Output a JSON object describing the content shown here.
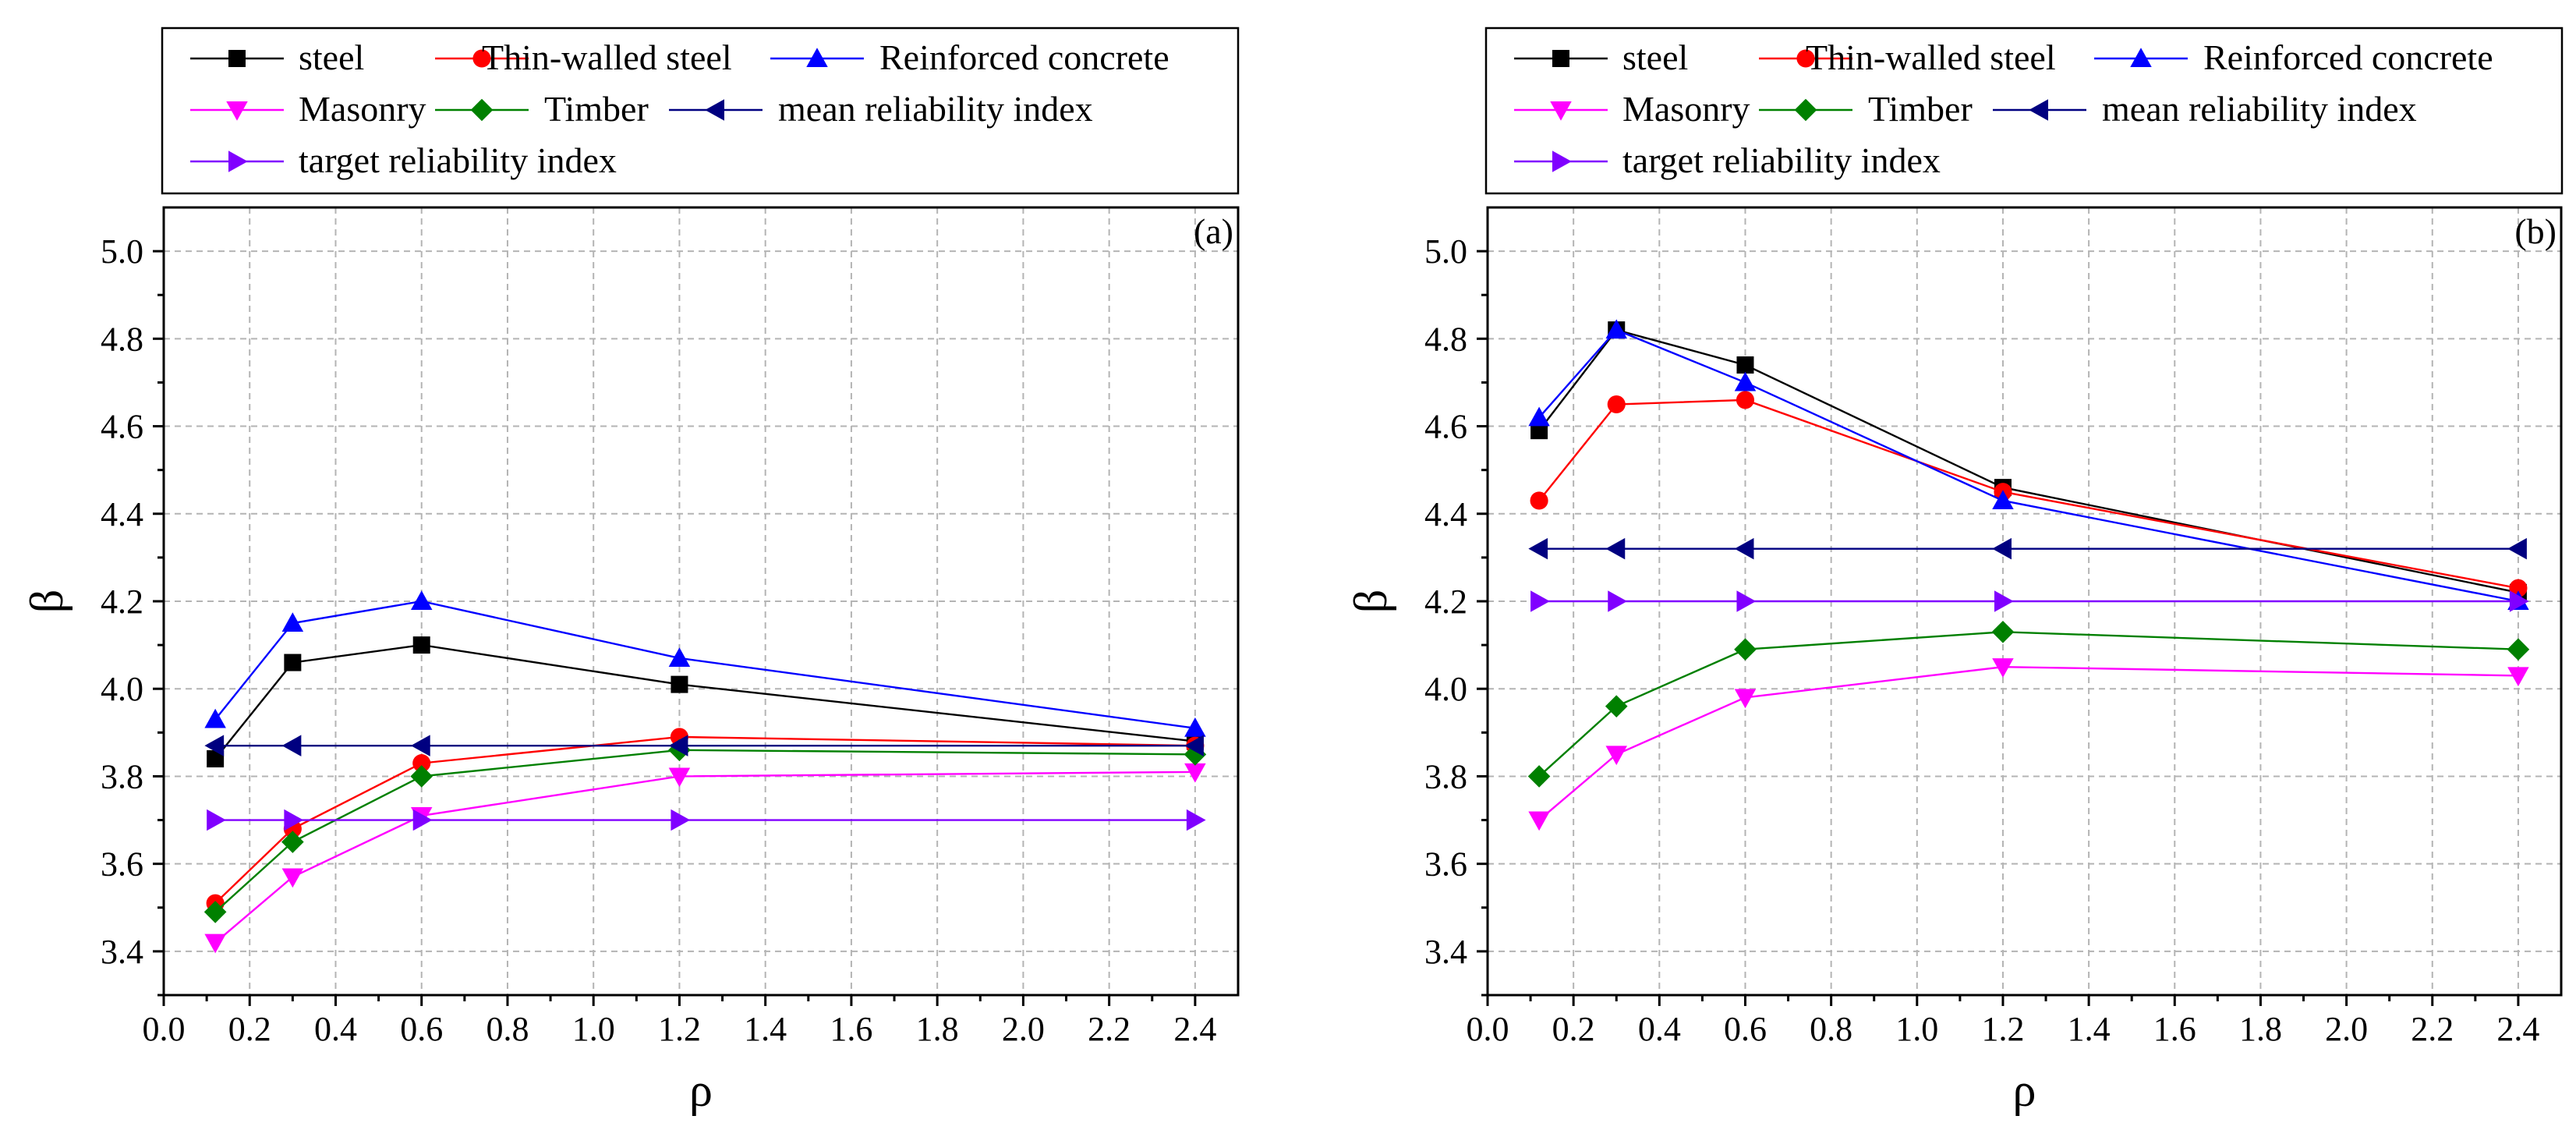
{
  "chart_data": [
    {
      "type": "line",
      "panel_label": "(a)",
      "xlabel": "ρ",
      "ylabel": "β",
      "xlim": [
        0.0,
        2.5
      ],
      "ylim": [
        3.3,
        5.1
      ],
      "xticks": [
        0.0,
        0.2,
        0.4,
        0.6,
        0.8,
        1.0,
        1.2,
        1.4,
        1.6,
        1.8,
        2.0,
        2.2,
        2.4
      ],
      "xtick_labels": [
        "0.0",
        "0.2",
        "0.4",
        "0.6",
        "0.8",
        "1.0",
        "1.2",
        "1.4",
        "1.6",
        "1.8",
        "2.0",
        "2.2",
        "2.4"
      ],
      "yticks": [
        3.4,
        3.6,
        3.8,
        4.0,
        4.2,
        4.4,
        4.6,
        4.8,
        5.0
      ],
      "ytick_labels": [
        "3.4",
        "3.6",
        "3.8",
        "4.0",
        "4.2",
        "4.4",
        "4.6",
        "4.8",
        "5.0"
      ],
      "grid": true,
      "legend_position": "top",
      "x": [
        0.12,
        0.3,
        0.6,
        1.2,
        2.4
      ],
      "series": [
        {
          "name": "steel",
          "color": "#000000",
          "marker": "square",
          "values": [
            3.84,
            4.06,
            4.1,
            4.01,
            3.88
          ]
        },
        {
          "name": "Thin-walled steel",
          "color": "#ff0000",
          "marker": "circle",
          "values": [
            3.51,
            3.68,
            3.83,
            3.89,
            3.87
          ]
        },
        {
          "name": "Reinforced concrete",
          "color": "#0000ff",
          "marker": "triangle-up",
          "values": [
            3.93,
            4.15,
            4.2,
            4.07,
            3.91
          ]
        },
        {
          "name": "Masonry",
          "color": "#ff00ff",
          "marker": "triangle-down",
          "values": [
            3.42,
            3.57,
            3.71,
            3.8,
            3.81
          ]
        },
        {
          "name": "Timber",
          "color": "#008000",
          "marker": "diamond",
          "values": [
            3.49,
            3.65,
            3.8,
            3.86,
            3.85
          ]
        },
        {
          "name": "mean reliability index",
          "color": "#000080",
          "marker": "triangle-left",
          "values": [
            3.87,
            3.87,
            3.87,
            3.87,
            3.87
          ]
        },
        {
          "name": "target reliability index",
          "color": "#8000ff",
          "marker": "triangle-right",
          "values": [
            3.7,
            3.7,
            3.7,
            3.7,
            3.7
          ]
        }
      ]
    },
    {
      "type": "line",
      "panel_label": "(b)",
      "xlabel": "ρ",
      "ylabel": "β",
      "xlim": [
        0.0,
        2.5
      ],
      "ylim": [
        3.3,
        5.1
      ],
      "xticks": [
        0.0,
        0.2,
        0.4,
        0.6,
        0.8,
        1.0,
        1.2,
        1.4,
        1.6,
        1.8,
        2.0,
        2.2,
        2.4
      ],
      "xtick_labels": [
        "0.0",
        "0.2",
        "0.4",
        "0.6",
        "0.8",
        "1.0",
        "1.2",
        "1.4",
        "1.6",
        "1.8",
        "2.0",
        "2.2",
        "2.4"
      ],
      "yticks": [
        3.4,
        3.6,
        3.8,
        4.0,
        4.2,
        4.4,
        4.6,
        4.8,
        5.0
      ],
      "ytick_labels": [
        "3.4",
        "3.6",
        "3.8",
        "4.0",
        "4.2",
        "4.4",
        "4.6",
        "4.8",
        "5.0"
      ],
      "grid": true,
      "legend_position": "top",
      "x": [
        0.12,
        0.3,
        0.6,
        1.2,
        2.4
      ],
      "series": [
        {
          "name": "steel",
          "color": "#000000",
          "marker": "square",
          "values": [
            4.59,
            4.82,
            4.74,
            4.46,
            4.22
          ]
        },
        {
          "name": "Thin-walled steel",
          "color": "#ff0000",
          "marker": "circle",
          "values": [
            4.43,
            4.65,
            4.66,
            4.45,
            4.23
          ]
        },
        {
          "name": "Reinforced concrete",
          "color": "#0000ff",
          "marker": "triangle-up",
          "values": [
            4.62,
            4.82,
            4.7,
            4.43,
            4.2
          ]
        },
        {
          "name": "Masonry",
          "color": "#ff00ff",
          "marker": "triangle-down",
          "values": [
            3.7,
            3.85,
            3.98,
            4.05,
            4.03
          ]
        },
        {
          "name": "Timber",
          "color": "#008000",
          "marker": "diamond",
          "values": [
            3.8,
            3.96,
            4.09,
            4.13,
            4.09
          ]
        },
        {
          "name": "mean reliability index",
          "color": "#000080",
          "marker": "triangle-left",
          "values": [
            4.32,
            4.32,
            4.32,
            4.32,
            4.32
          ]
        },
        {
          "name": "target reliability index",
          "color": "#8000ff",
          "marker": "triangle-right",
          "values": [
            4.2,
            4.2,
            4.2,
            4.2,
            4.2
          ]
        }
      ]
    }
  ]
}
